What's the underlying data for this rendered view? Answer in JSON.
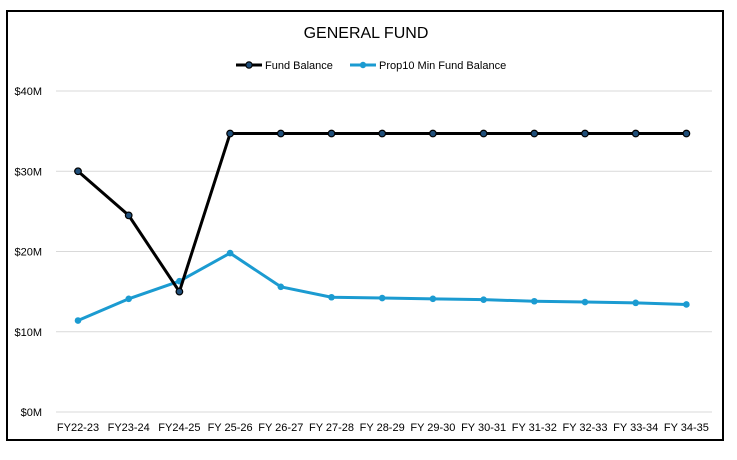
{
  "chart_data": {
    "type": "line",
    "title": "GENERAL FUND",
    "xlabel": "",
    "ylabel": "",
    "categories": [
      "FY22-23",
      "FY23-24",
      "FY24-25",
      "FY 25-26",
      "FY 26-27",
      "FY 27-28",
      "FY 28-29",
      "FY 29-30",
      "FY 30-31",
      "FY 31-32",
      "FY 32-33",
      "FY 33-34",
      "FY 34-35"
    ],
    "ylim": [
      0,
      40
    ],
    "yticks": [
      0,
      10,
      20,
      30,
      40
    ],
    "ytick_labels": [
      "$0M",
      "$10M",
      "$20M",
      "$30M",
      "$40M"
    ],
    "grid": true,
    "legend_position": "top",
    "series": [
      {
        "name": "Fund Balance",
        "color": "#000000",
        "marker_color": "#1f4e79",
        "values": [
          30.0,
          24.5,
          15.0,
          34.7,
          34.7,
          34.7,
          34.7,
          34.7,
          34.7,
          34.7,
          34.7,
          34.7,
          34.7
        ]
      },
      {
        "name": "Prop10 Min Fund Balance",
        "color": "#1b9bd1",
        "marker_color": "#1b9bd1",
        "values": [
          11.4,
          14.1,
          16.3,
          19.8,
          15.6,
          14.3,
          14.2,
          14.1,
          14.0,
          13.8,
          13.7,
          13.6,
          13.4
        ]
      }
    ]
  }
}
